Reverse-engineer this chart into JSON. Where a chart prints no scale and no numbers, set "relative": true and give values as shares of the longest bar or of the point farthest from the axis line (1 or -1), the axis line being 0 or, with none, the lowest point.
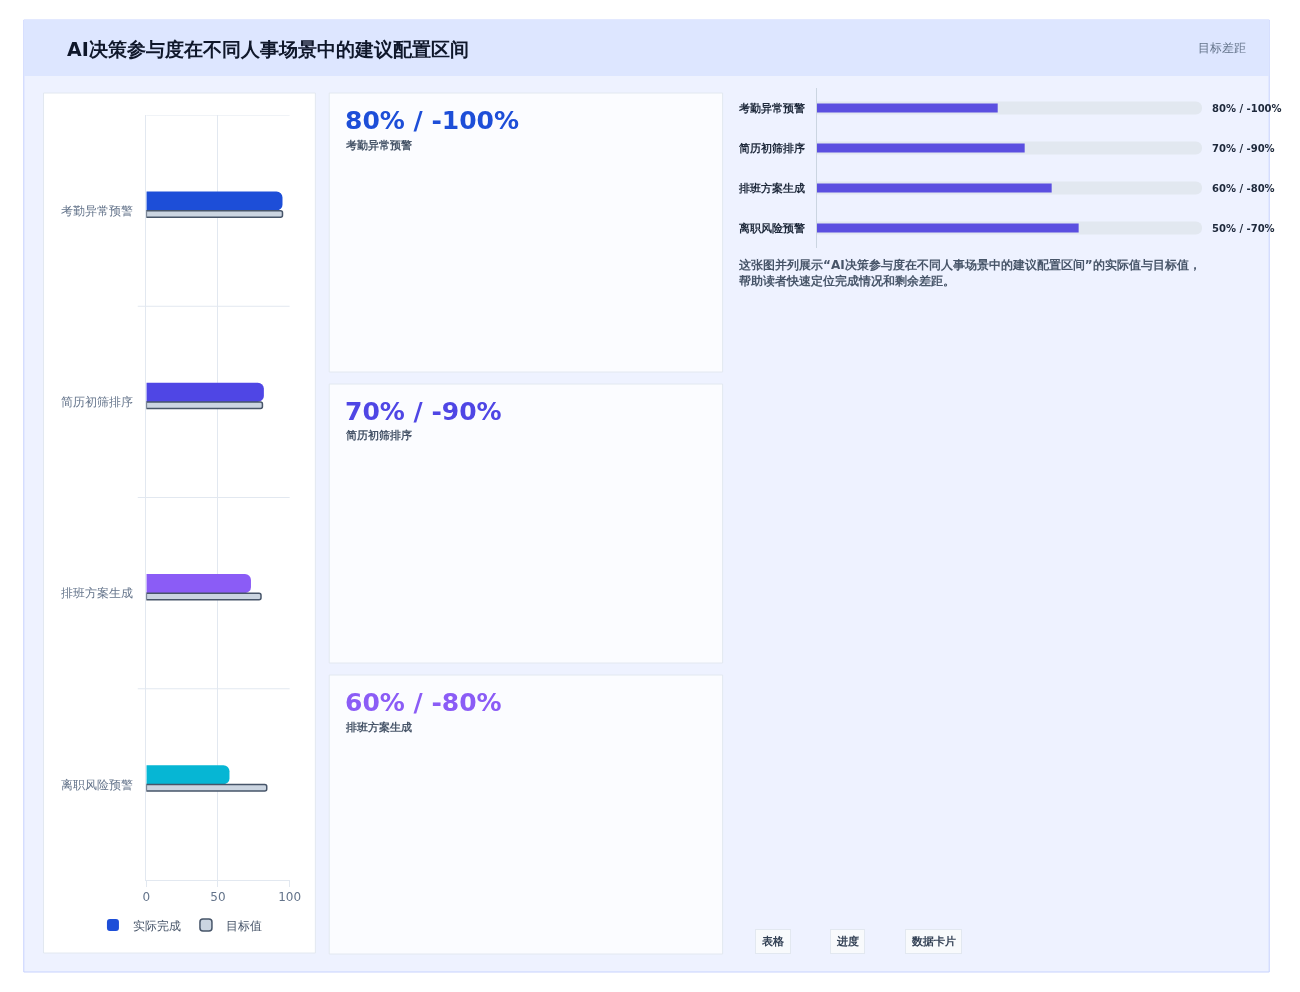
{
  "chart_data": [
    {
      "type": "bar",
      "title": "AI决策参与度在不同人事场景中的建议配置区间",
      "annotations": [
        "目标差距"
      ],
      "orientation": "horizontal",
      "categories": [
        "考勤异常预警",
        "简历初筛排序",
        "排班方案生成",
        "离职风险预警"
      ],
      "series": [
        {
          "name": "实际完成",
          "color": "#1d4ed8",
          "colors": [
            "#1d4ed8",
            "#4f46e5",
            "#8b5cf6",
            "#06b6d4"
          ],
          "values": [
            95,
            82,
            73,
            58
          ]
        },
        {
          "name": "目标值",
          "color": "#cbd5e1",
          "values": [
            95,
            81,
            80,
            84
          ]
        }
      ],
      "xlim": [
        0,
        100
      ],
      "xticks": [
        0,
        50,
        100
      ],
      "grid": true,
      "legend": "bottom"
    },
    {
      "type": "other",
      "title": "80% / -100%",
      "subtitle": "考勤异常预警"
    },
    {
      "type": "other",
      "title": "70% / -90%",
      "subtitle": "简历初筛排序"
    },
    {
      "type": "other",
      "title": "60% / -80%",
      "subtitle": "排班方案生成"
    },
    {
      "type": "bar",
      "orientation": "horizontal",
      "relative": true,
      "categories": [
        "考勤异常预警",
        "简历初筛排序",
        "排班方案生成",
        "离职风险预警"
      ],
      "series": [
        {
          "color": "#e2e8f0",
          "values": [
            1,
            1,
            1,
            1
          ]
        },
        {
          "color": "#5b4fe0",
          "values": [
            0.47,
            0.54,
            0.61,
            0.68
          ]
        }
      ],
      "annotations": [
        "80% / -100%",
        "70% / -90%",
        "60% / -80%",
        "50% / -70%",
        "这张图并列展示“AI决策参与度在不同人事场景中的建议配置区间”的实际值与目标值，帮助读者快速定位完成情况和剩余差距。",
        "表格",
        "进度",
        "数据卡片"
      ]
    }
  ]
}
